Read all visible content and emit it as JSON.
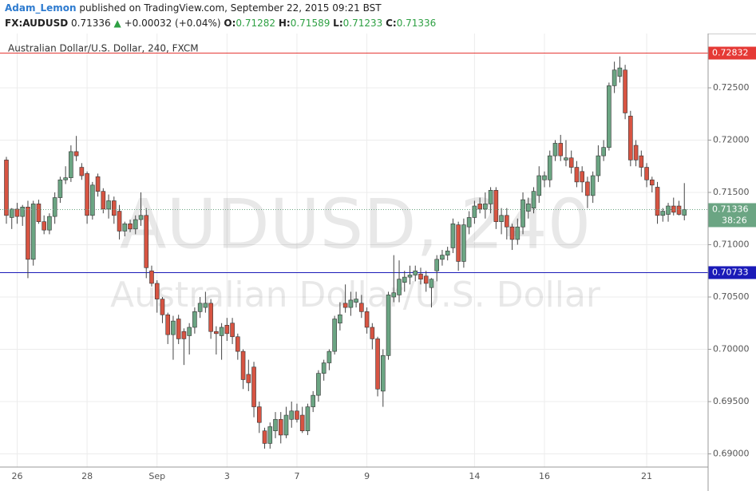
{
  "header": {
    "author": "Adam_Lemon",
    "published": "published on TradingView.com, September 22, 2015 09:21 BST"
  },
  "chart_data": {
    "type": "candlestick",
    "symbol": "FX:AUDUSD",
    "change": "+0.00032 (+0.04%)",
    "o_label": "O:",
    "h_label": "H:",
    "l_label": "L:",
    "c_label": "C:",
    "chart_label": "Australian Dollar/U.S. Dollar, 240, FXCM",
    "watermark": "AUDUSD, 240",
    "watermark_sub": "Australian Dollar/U.S. Dollar",
    "countdown": "38:26",
    "up_color": "#6ba583",
    "down_color": "#d75442",
    "grid": true,
    "ylim": [
      0.68874,
      0.73019
    ],
    "yticks": [
      {
        "value": 0.69,
        "label": "0.69000"
      },
      {
        "value": 0.695,
        "label": "0.69500"
      },
      {
        "value": 0.7,
        "label": "0.70000"
      },
      {
        "value": 0.705,
        "label": "0.70500"
      },
      {
        "value": 0.71,
        "label": "0.71000"
      },
      {
        "value": 0.715,
        "label": "0.71500"
      },
      {
        "value": 0.72,
        "label": "0.72000"
      },
      {
        "value": 0.725,
        "label": "0.72500"
      }
    ],
    "xticks": [
      {
        "value": 2,
        "label": "26"
      },
      {
        "value": 15,
        "label": "28"
      },
      {
        "value": 28,
        "label": "Sep"
      },
      {
        "value": 41,
        "label": "3"
      },
      {
        "value": 54,
        "label": "7"
      },
      {
        "value": 67,
        "label": "9"
      },
      {
        "value": 87,
        "label": "14"
      },
      {
        "value": 100,
        "label": "16"
      },
      {
        "value": 119,
        "label": "21"
      }
    ],
    "levels": [
      {
        "value": 0.72832,
        "color": "#e53935"
      },
      {
        "value": 0.70733,
        "color": "#1a1ab8"
      }
    ],
    "open": [
      0.7181,
      0.7126,
      0.7134,
      0.7127,
      0.7136,
      0.7086,
      0.7139,
      0.7122,
      0.7114,
      0.7127,
      0.7145,
      0.7162,
      0.7164,
      0.7189,
      0.7174,
      0.7168,
      0.7128,
      0.7165,
      0.7151,
      0.7134,
      0.7142,
      0.7132,
      0.7113,
      0.712,
      0.7115,
      0.7124,
      0.7128,
      0.7075,
      0.7063,
      0.7048,
      0.7033,
      0.7014,
      0.7029,
      0.7017,
      0.7013,
      0.7021,
      0.7036,
      0.704,
      0.7044,
      0.7017,
      0.7013,
      0.7023,
      0.7025,
      0.7012,
      0.6998,
      0.6976,
      0.6983,
      0.6945,
      0.6922,
      0.691,
      0.6922,
      0.6933,
      0.6918,
      0.6933,
      0.6941,
      0.6937,
      0.6922,
      0.6945,
      0.6956,
      0.6977,
      0.6987,
      0.6998,
      0.7025,
      0.7044,
      0.704,
      0.7045,
      0.7044,
      0.7036,
      0.7021,
      0.701,
      0.696,
      0.6994,
      0.705,
      0.7052,
      0.7064,
      0.7069,
      0.7071,
      0.7072,
      0.707,
      0.7059,
      0.7075,
      0.7086,
      0.709,
      0.7097,
      0.7119,
      0.7084,
      0.7117,
      0.7126,
      0.7139,
      0.7134,
      0.7139,
      0.7152,
      0.7122,
      0.7128,
      0.7117,
      0.7105,
      0.7117,
      0.7132,
      0.7135,
      0.7147,
      0.7162,
      0.7162,
      0.7185,
      0.7197,
      0.7181,
      0.7183,
      0.7174,
      0.717,
      0.716,
      0.7147,
      0.7166,
      0.7185,
      0.7193,
      0.7252,
      0.7261,
      0.7267,
      0.7223,
      0.7195,
      0.7185,
      0.7174,
      0.7162,
      0.7155,
      0.7128,
      0.7129,
      0.7137,
      0.7137,
      0.71282
    ],
    "high": [
      0.7184,
      0.7135,
      0.714,
      0.7138,
      0.7142,
      0.7142,
      0.7143,
      0.7128,
      0.713,
      0.715,
      0.7165,
      0.7175,
      0.7195,
      0.7204,
      0.7178,
      0.717,
      0.716,
      0.7168,
      0.7154,
      0.7148,
      0.7146,
      0.7138,
      0.7122,
      0.7124,
      0.7128,
      0.715,
      0.7135,
      0.708,
      0.7066,
      0.705,
      0.7035,
      0.7032,
      0.7033,
      0.702,
      0.7025,
      0.704,
      0.705,
      0.7055,
      0.7048,
      0.7022,
      0.7025,
      0.703,
      0.703,
      0.7015,
      0.7,
      0.699,
      0.6988,
      0.695,
      0.6925,
      0.693,
      0.694,
      0.694,
      0.6945,
      0.695,
      0.6948,
      0.6945,
      0.6948,
      0.696,
      0.698,
      0.699,
      0.7,
      0.7032,
      0.7045,
      0.7062,
      0.7055,
      0.7055,
      0.7052,
      0.704,
      0.7025,
      0.7012,
      0.7,
      0.7055,
      0.709,
      0.7085,
      0.7075,
      0.708,
      0.708,
      0.7078,
      0.7075,
      0.7068,
      0.709,
      0.7095,
      0.7098,
      0.7125,
      0.7122,
      0.7125,
      0.7132,
      0.7142,
      0.7145,
      0.715,
      0.7155,
      0.7155,
      0.7135,
      0.7135,
      0.712,
      0.7125,
      0.715,
      0.7145,
      0.7155,
      0.7175,
      0.717,
      0.719,
      0.72,
      0.7205,
      0.72,
      0.719,
      0.718,
      0.7175,
      0.7165,
      0.717,
      0.7195,
      0.72,
      0.7255,
      0.7275,
      0.728,
      0.7272,
      0.7228,
      0.72,
      0.719,
      0.7178,
      0.7165,
      0.716,
      0.7135,
      0.714,
      0.7145,
      0.7142,
      0.71589
    ],
    "low": [
      0.712,
      0.7115,
      0.712,
      0.7118,
      0.7068,
      0.708,
      0.712,
      0.711,
      0.711,
      0.712,
      0.714,
      0.7158,
      0.716,
      0.718,
      0.7162,
      0.712,
      0.7124,
      0.7146,
      0.713,
      0.7125,
      0.712,
      0.7105,
      0.7108,
      0.7112,
      0.711,
      0.7118,
      0.7068,
      0.706,
      0.7035,
      0.7025,
      0.7005,
      0.699,
      0.7005,
      0.6985,
      0.6995,
      0.7015,
      0.703,
      0.7035,
      0.701,
      0.6995,
      0.699,
      0.7008,
      0.7005,
      0.699,
      0.6962,
      0.696,
      0.6935,
      0.692,
      0.6905,
      0.6905,
      0.6915,
      0.691,
      0.6915,
      0.6925,
      0.693,
      0.692,
      0.6918,
      0.694,
      0.695,
      0.697,
      0.698,
      0.6995,
      0.7018,
      0.7035,
      0.7032,
      0.704,
      0.703,
      0.7015,
      0.7,
      0.6955,
      0.6945,
      0.699,
      0.7045,
      0.7045,
      0.7055,
      0.7062,
      0.7065,
      0.7062,
      0.7055,
      0.704,
      0.7065,
      0.708,
      0.7085,
      0.7092,
      0.7075,
      0.7078,
      0.711,
      0.712,
      0.713,
      0.7125,
      0.713,
      0.7115,
      0.711,
      0.7105,
      0.7095,
      0.71,
      0.711,
      0.7125,
      0.713,
      0.714,
      0.7155,
      0.7155,
      0.718,
      0.718,
      0.7175,
      0.7168,
      0.7155,
      0.715,
      0.7135,
      0.714,
      0.716,
      0.718,
      0.719,
      0.7245,
      0.7255,
      0.722,
      0.7175,
      0.7175,
      0.7165,
      0.7155,
      0.715,
      0.712,
      0.7122,
      0.7122,
      0.7128,
      0.7128,
      0.71233
    ],
    "close": [
      0.7128,
      0.7134,
      0.7127,
      0.7136,
      0.7086,
      0.7139,
      0.7122,
      0.7114,
      0.7127,
      0.7145,
      0.7162,
      0.7164,
      0.7189,
      0.7185,
      0.7166,
      0.7128,
      0.7157,
      0.7151,
      0.7134,
      0.7142,
      0.7128,
      0.7113,
      0.712,
      0.7115,
      0.7124,
      0.7128,
      0.7078,
      0.7063,
      0.7048,
      0.7033,
      0.7014,
      0.7027,
      0.701,
      0.701,
      0.7021,
      0.7036,
      0.7044,
      0.7044,
      0.7017,
      0.7015,
      0.7021,
      0.7015,
      0.7012,
      0.6998,
      0.6971,
      0.6968,
      0.6945,
      0.693,
      0.691,
      0.6926,
      0.6933,
      0.6918,
      0.6937,
      0.6941,
      0.6933,
      0.6922,
      0.6945,
      0.6956,
      0.6977,
      0.6987,
      0.6998,
      0.7029,
      0.7033,
      0.704,
      0.7047,
      0.7048,
      0.7036,
      0.7021,
      0.701,
      0.6962,
      0.6994,
      0.7052,
      0.7054,
      0.7067,
      0.7069,
      0.7071,
      0.7075,
      0.7067,
      0.7063,
      0.7067,
      0.7086,
      0.709,
      0.7094,
      0.712,
      0.7084,
      0.7119,
      0.7126,
      0.7137,
      0.7134,
      0.7139,
      0.7152,
      0.7122,
      0.7128,
      0.7117,
      0.7105,
      0.7117,
      0.7143,
      0.7139,
      0.7151,
      0.7166,
      0.7166,
      0.7185,
      0.7197,
      0.7185,
      0.7183,
      0.7174,
      0.716,
      0.716,
      0.7147,
      0.7166,
      0.7185,
      0.7193,
      0.7252,
      0.7267,
      0.7269,
      0.7226,
      0.7181,
      0.7181,
      0.7174,
      0.7162,
      0.7157,
      0.7128,
      0.7132,
      0.7137,
      0.7131,
      0.7129,
      0.71336
    ]
  }
}
